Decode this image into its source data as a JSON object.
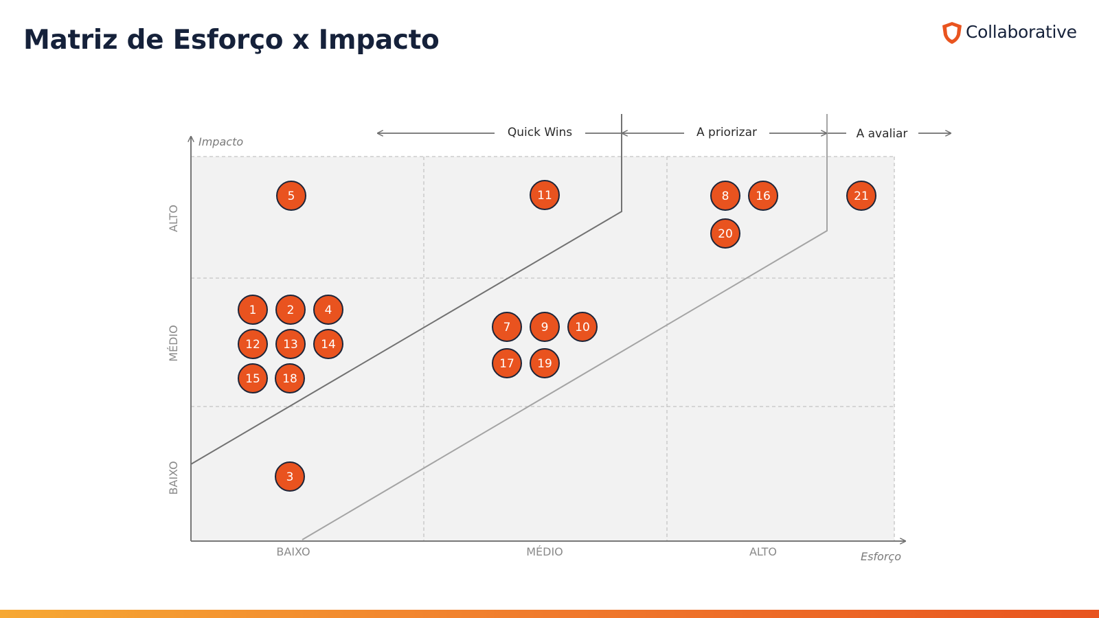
{
  "title": "Matriz de Esforço x Impacto",
  "logo": {
    "text": "Collaborative",
    "icon": "shield-icon",
    "color": "#e9541f"
  },
  "axes": {
    "y_label": "Impacto",
    "x_label": "Esforço",
    "y_levels": [
      "ALTO",
      "MÉDIO",
      "BAIXO"
    ],
    "x_levels": [
      "BAIXO",
      "MÉDIO",
      "ALTO"
    ]
  },
  "zones": [
    "Quick Wins",
    "A priorizar",
    "A avaliar"
  ],
  "colors": {
    "dot_fill": "#e9531f",
    "dot_stroke": "#1c2438",
    "grid_bg": "#f2f2f2",
    "title": "#15213a"
  },
  "items": [
    {
      "label": "5",
      "effort": "BAIXO",
      "impact": "ALTO"
    },
    {
      "label": "11",
      "effort": "MÉDIO",
      "impact": "ALTO"
    },
    {
      "label": "8",
      "effort": "ALTO",
      "impact": "ALTO"
    },
    {
      "label": "16",
      "effort": "ALTO",
      "impact": "ALTO"
    },
    {
      "label": "20",
      "effort": "ALTO",
      "impact": "ALTO"
    },
    {
      "label": "21",
      "effort": "ALTO",
      "impact": "ALTO"
    },
    {
      "label": "1",
      "effort": "BAIXO",
      "impact": "MÉDIO"
    },
    {
      "label": "2",
      "effort": "BAIXO",
      "impact": "MÉDIO"
    },
    {
      "label": "4",
      "effort": "BAIXO",
      "impact": "MÉDIO"
    },
    {
      "label": "12",
      "effort": "BAIXO",
      "impact": "MÉDIO"
    },
    {
      "label": "13",
      "effort": "BAIXO",
      "impact": "MÉDIO"
    },
    {
      "label": "14",
      "effort": "BAIXO",
      "impact": "MÉDIO"
    },
    {
      "label": "15",
      "effort": "BAIXO",
      "impact": "MÉDIO"
    },
    {
      "label": "18",
      "effort": "BAIXO",
      "impact": "MÉDIO"
    },
    {
      "label": "7",
      "effort": "MÉDIO",
      "impact": "MÉDIO"
    },
    {
      "label": "9",
      "effort": "MÉDIO",
      "impact": "MÉDIO"
    },
    {
      "label": "10",
      "effort": "MÉDIO",
      "impact": "MÉDIO"
    },
    {
      "label": "17",
      "effort": "MÉDIO",
      "impact": "MÉDIO"
    },
    {
      "label": "19",
      "effort": "MÉDIO",
      "impact": "MÉDIO"
    },
    {
      "label": "3",
      "effort": "BAIXO",
      "impact": "BAIXO"
    }
  ]
}
